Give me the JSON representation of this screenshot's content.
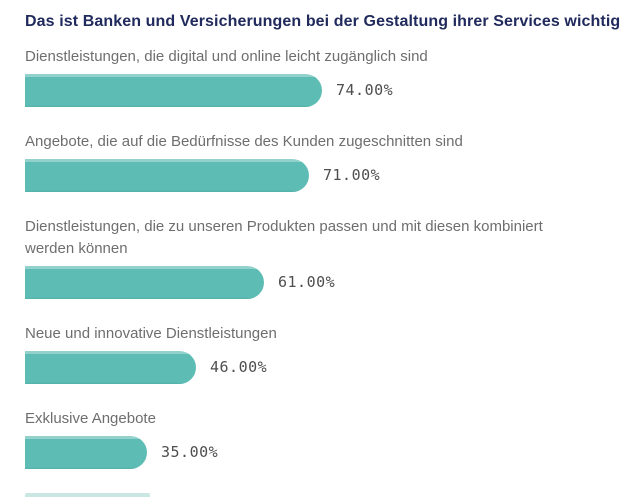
{
  "title": "Das ist Banken und Versicherungen bei der Gestaltung ihrer Services wichtig",
  "colors": {
    "title": "#202a5c",
    "label": "#6e6e6e",
    "value": "#4e4e4e",
    "bar_main": "#5dbdb5",
    "bar_highlight": "#93d2cc",
    "bar_shade": "#52b0a7",
    "cutoff_bar": "#cbe7e4",
    "background": "#ffffff"
  },
  "chart_data": {
    "type": "bar",
    "orientation": "horizontal",
    "title": "Das ist Banken und Versicherungen bei der Gestaltung ihrer Services wichtig",
    "categories": [
      "Dienstleistungen, die digital und online leicht zugänglich sind",
      "Angebote, die auf die Bedürfnisse des Kunden zugeschnitten sind",
      "Dienstleistungen, die zu unseren Produkten passen und mit diesen kombiniert werden können",
      "Neue und innovative Dienstleistungen",
      "Exklusive Angebote"
    ],
    "values": [
      74,
      71,
      61,
      46,
      35
    ],
    "value_labels": [
      "74.00%",
      "71.00%",
      "61.00%",
      "46.00%",
      "35.00%"
    ],
    "unit": "%",
    "xlim": [
      0,
      100
    ],
    "grid": false,
    "legend": false,
    "value_label_position": "right-of-bar",
    "note_partial_sixth_bar_cut_off_at_bottom": true
  }
}
